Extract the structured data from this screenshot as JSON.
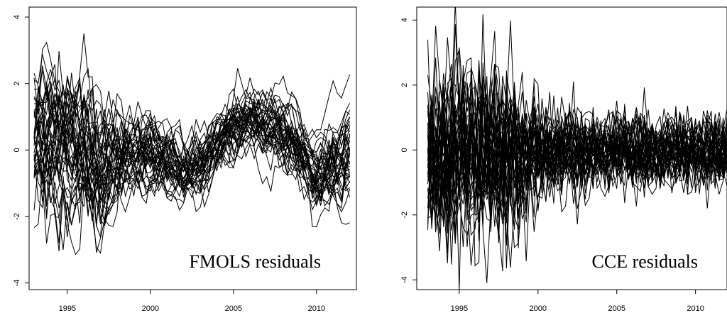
{
  "chart_data": [
    {
      "type": "line",
      "label": "FMOLS residuals",
      "x_ticks": [
        "1995",
        "2000",
        "2005",
        "2010"
      ],
      "y_ticks": [
        "-4",
        "-2",
        "0",
        "2",
        "4"
      ],
      "xlim": [
        1992.7,
        2012.4
      ],
      "ylim": [
        -4.2,
        4.3
      ],
      "grid": false,
      "n_series_approx": 40,
      "frequency": "quarterly",
      "x_range": [
        1993.0,
        2012.0
      ],
      "common_factor": {
        "x": [
          1993.0,
          1994.0,
          1995.0,
          1996.0,
          1997.0,
          1997.5,
          1998.5,
          2000.0,
          2001.0,
          2002.0,
          2003.0,
          2004.0,
          2005.0,
          2006.0,
          2006.5,
          2007.5,
          2008.5,
          2009.5,
          2010.0,
          2011.0,
          2012.0
        ],
        "y": [
          0.4,
          0.5,
          0.1,
          0.3,
          -0.8,
          -0.3,
          0.0,
          -0.1,
          -0.3,
          -0.6,
          -0.4,
          0.3,
          0.7,
          1.1,
          1.0,
          0.6,
          0.3,
          -0.4,
          -0.8,
          -0.3,
          0.0
        ]
      },
      "dispersion": {
        "x": [
          1993.0,
          1995.0,
          1997.0,
          1998.0,
          1999.0,
          2001.0,
          2003.0,
          2005.0,
          2008.0,
          2010.0,
          2012.0
        ],
        "sd": [
          1.3,
          1.2,
          1.1,
          0.8,
          0.6,
          0.55,
          0.5,
          0.5,
          0.5,
          0.55,
          0.75
        ]
      },
      "noise_sd": 0.25,
      "persistence": 0.8
    },
    {
      "type": "line",
      "label": "CCE residuals",
      "x_ticks": [
        "1995",
        "2000",
        "2005",
        "2010"
      ],
      "y_ticks": [
        "-4",
        "-2",
        "0",
        "2",
        "4"
      ],
      "xlim": [
        1992.3,
        2012.0
      ],
      "ylim": [
        -4.3,
        4.4
      ],
      "grid": false,
      "n_series_approx": 40,
      "frequency": "quarterly",
      "x_range": [
        1993.0,
        2012.0
      ],
      "common_factor": {
        "x": [
          1993.0,
          2012.0
        ],
        "y": [
          0.0,
          0.0
        ]
      },
      "dispersion": {
        "x": [
          1993.0,
          1995.0,
          1997.0,
          1998.5,
          2000.0,
          2003.0,
          2006.0,
          2009.0,
          2012.0
        ],
        "sd": [
          1.2,
          1.3,
          1.3,
          1.1,
          0.7,
          0.55,
          0.5,
          0.5,
          0.5
        ]
      },
      "noise_sd": 0.5,
      "persistence": 0.1
    }
  ]
}
